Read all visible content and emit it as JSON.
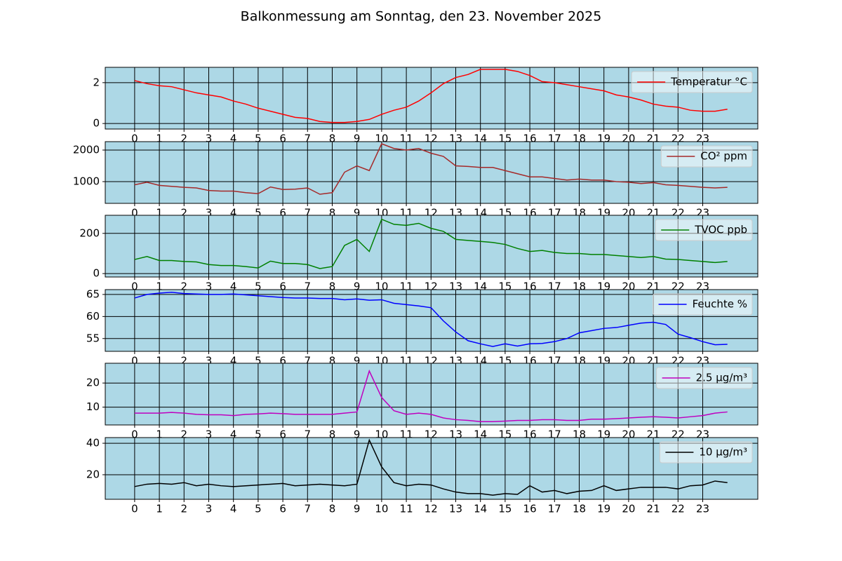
{
  "title": "Balkonmessung am Sonntag, den 23. November 2025",
  "chart_data": [
    {
      "type": "line",
      "x": [
        0,
        0.5,
        1,
        1.5,
        2,
        2.5,
        3,
        3.5,
        4,
        4.5,
        5,
        5.5,
        6,
        6.5,
        7,
        7.5,
        8,
        8.5,
        9,
        9.5,
        10,
        10.5,
        11,
        11.5,
        12,
        12.5,
        13,
        13.5,
        14,
        14.5,
        15,
        15.5,
        16,
        16.5,
        17,
        17.5,
        18,
        18.5,
        19,
        19.5,
        20,
        20.5,
        21,
        21.5,
        22,
        22.5,
        23,
        23.5,
        24
      ],
      "series": [
        {
          "name": "Temperatur °C",
          "color": "#ff0000",
          "values": [
            2.1,
            1.95,
            1.85,
            1.8,
            1.65,
            1.5,
            1.4,
            1.3,
            1.1,
            0.95,
            0.75,
            0.6,
            0.45,
            0.3,
            0.25,
            0.1,
            0.05,
            0.05,
            0.1,
            0.2,
            0.45,
            0.65,
            0.8,
            1.1,
            1.5,
            1.95,
            2.25,
            2.4,
            2.65,
            2.65,
            2.65,
            2.55,
            2.35,
            2.05,
            2.0,
            1.9,
            1.8,
            1.7,
            1.6,
            1.4,
            1.3,
            1.15,
            0.95,
            0.85,
            0.8,
            0.65,
            0.6,
            0.6,
            0.7
          ]
        }
      ],
      "xlim": [
        -1.19,
        25.23
      ],
      "ylim": [
        -0.27,
        2.75
      ],
      "xticks": [
        0,
        1,
        2,
        3,
        4,
        5,
        6,
        7,
        8,
        9,
        10,
        11,
        12,
        13,
        14,
        15,
        16,
        17,
        18,
        19,
        20,
        21,
        22,
        23
      ],
      "yticks": [
        0,
        2
      ],
      "grid": true,
      "legend": "upper right"
    },
    {
      "type": "line",
      "x": [
        0,
        0.5,
        1,
        1.5,
        2,
        2.5,
        3,
        3.5,
        4,
        4.5,
        5,
        5.5,
        6,
        6.5,
        7,
        7.5,
        8,
        8.5,
        9,
        9.5,
        10,
        10.5,
        11,
        11.5,
        12,
        12.5,
        13,
        13.5,
        14,
        14.5,
        15,
        15.5,
        16,
        16.5,
        17,
        17.5,
        18,
        18.5,
        19,
        19.5,
        20,
        20.5,
        21,
        21.5,
        22,
        22.5,
        23,
        23.5,
        24
      ],
      "series": [
        {
          "name": "CO² ppm",
          "color": "#a52a2a",
          "values": [
            900,
            980,
            880,
            850,
            820,
            800,
            720,
            700,
            700,
            650,
            620,
            830,
            750,
            760,
            800,
            600,
            650,
            1300,
            1500,
            1350,
            2200,
            2050,
            2000,
            2050,
            1900,
            1800,
            1500,
            1480,
            1450,
            1450,
            1350,
            1250,
            1150,
            1150,
            1100,
            1050,
            1080,
            1050,
            1050,
            1000,
            980,
            940,
            970,
            900,
            880,
            850,
            820,
            800,
            820
          ]
        }
      ],
      "xlim": [
        -1.19,
        25.23
      ],
      "ylim": [
        311,
        2267
      ],
      "xticks": [
        0,
        1,
        2,
        3,
        4,
        5,
        6,
        7,
        8,
        9,
        10,
        11,
        12,
        13,
        14,
        15,
        16,
        17,
        18,
        19,
        20,
        21,
        22,
        23
      ],
      "yticks": [
        1000,
        2000
      ],
      "grid": true,
      "legend": "upper right"
    },
    {
      "type": "line",
      "x": [
        0,
        0.5,
        1,
        1.5,
        2,
        2.5,
        3,
        3.5,
        4,
        4.5,
        5,
        5.5,
        6,
        6.5,
        7,
        7.5,
        8,
        8.5,
        9,
        9.5,
        10,
        10.5,
        11,
        11.5,
        12,
        12.5,
        13,
        13.5,
        14,
        14.5,
        15,
        15.5,
        16,
        16.5,
        17,
        17.5,
        18,
        18.5,
        19,
        19.5,
        20,
        20.5,
        21,
        21.5,
        22,
        22.5,
        23,
        23.5,
        24
      ],
      "series": [
        {
          "name": "TVOC ppb",
          "color": "#008000",
          "values": [
            70,
            85,
            65,
            65,
            60,
            58,
            45,
            40,
            40,
            35,
            28,
            62,
            50,
            50,
            45,
            25,
            35,
            140,
            170,
            110,
            270,
            245,
            240,
            250,
            225,
            210,
            170,
            165,
            160,
            155,
            145,
            125,
            110,
            115,
            105,
            100,
            100,
            95,
            95,
            90,
            85,
            80,
            85,
            72,
            70,
            65,
            60,
            55,
            60
          ]
        }
      ],
      "xlim": [
        -1.19,
        25.23
      ],
      "ylim": [
        -17,
        290
      ],
      "xticks": [
        0,
        1,
        2,
        3,
        4,
        5,
        6,
        7,
        8,
        9,
        10,
        11,
        12,
        13,
        14,
        15,
        16,
        17,
        18,
        19,
        20,
        21,
        22,
        23
      ],
      "yticks": [
        0,
        200
      ],
      "grid": true,
      "legend": "upper right"
    },
    {
      "type": "line",
      "x": [
        0,
        0.5,
        1,
        1.5,
        2,
        2.5,
        3,
        3.5,
        4,
        4.5,
        5,
        5.5,
        6,
        6.5,
        7,
        7.5,
        8,
        8.5,
        9,
        9.5,
        10,
        10.5,
        11,
        11.5,
        12,
        12.5,
        13,
        13.5,
        14,
        14.5,
        15,
        15.5,
        16,
        16.5,
        17,
        17.5,
        18,
        18.5,
        19,
        19.5,
        20,
        20.5,
        21,
        21.5,
        22,
        22.5,
        23,
        23.5,
        24
      ],
      "series": [
        {
          "name": "Feuchte %",
          "color": "#0000ff",
          "values": [
            64.2,
            65,
            65.3,
            65.5,
            65.2,
            65.1,
            65,
            65,
            65.1,
            64.9,
            64.7,
            64.5,
            64.3,
            64.2,
            64.2,
            64.1,
            64.1,
            63.8,
            64,
            63.7,
            63.8,
            63,
            62.7,
            62.4,
            62,
            59,
            56.5,
            54.5,
            53.8,
            53.2,
            53.8,
            53.3,
            53.8,
            53.9,
            54.3,
            55,
            56.3,
            56.8,
            57.3,
            57.5,
            58,
            58.5,
            58.7,
            58.2,
            56,
            55.2,
            54.3,
            53.6,
            53.7
          ]
        }
      ],
      "xlim": [
        -1.19,
        25.23
      ],
      "ylim": [
        52.1,
        66.1
      ],
      "xticks": [
        0,
        1,
        2,
        3,
        4,
        5,
        6,
        7,
        8,
        9,
        10,
        11,
        12,
        13,
        14,
        15,
        16,
        17,
        18,
        19,
        20,
        21,
        22,
        23
      ],
      "yticks": [
        55,
        60,
        65
      ],
      "grid": true,
      "legend": "upper right"
    },
    {
      "type": "line",
      "x": [
        0,
        0.5,
        1,
        1.5,
        2,
        2.5,
        3,
        3.5,
        4,
        4.5,
        5,
        5.5,
        6,
        6.5,
        7,
        7.5,
        8,
        8.5,
        9,
        9.5,
        10,
        10.5,
        11,
        11.5,
        12,
        12.5,
        13,
        13.5,
        14,
        14.5,
        15,
        15.5,
        16,
        16.5,
        17,
        17.5,
        18,
        18.5,
        19,
        19.5,
        20,
        20.5,
        21,
        21.5,
        22,
        22.5,
        23,
        23.5,
        24
      ],
      "series": [
        {
          "name": "2.5 µg/m³",
          "color": "#bf00bf",
          "values": [
            7.5,
            7.5,
            7.5,
            7.8,
            7.5,
            7,
            6.8,
            6.8,
            6.5,
            7,
            7.2,
            7.5,
            7.3,
            7,
            7,
            7,
            7,
            7.5,
            8,
            25,
            14,
            8.5,
            7,
            7.5,
            7,
            5.5,
            4.8,
            4.5,
            4,
            4,
            4.2,
            4.5,
            4.5,
            4.8,
            4.8,
            4.5,
            4.5,
            5,
            5,
            5.2,
            5.5,
            5.8,
            6,
            5.8,
            5.5,
            6,
            6.5,
            7.5,
            8
          ]
        }
      ],
      "xlim": [
        -1.19,
        25.23
      ],
      "ylim": [
        2.6,
        28.2
      ],
      "xticks": [
        0,
        1,
        2,
        3,
        4,
        5,
        6,
        7,
        8,
        9,
        10,
        11,
        12,
        13,
        14,
        15,
        16,
        17,
        18,
        19,
        20,
        21,
        22,
        23
      ],
      "yticks": [
        10,
        20
      ],
      "grid": true,
      "legend": "upper right"
    },
    {
      "type": "line",
      "x": [
        0,
        0.5,
        1,
        1.5,
        2,
        2.5,
        3,
        3.5,
        4,
        4.5,
        5,
        5.5,
        6,
        6.5,
        7,
        7.5,
        8,
        8.5,
        9,
        9.5,
        10,
        10.5,
        11,
        11.5,
        12,
        12.5,
        13,
        13.5,
        14,
        14.5,
        15,
        15.5,
        16,
        16.5,
        17,
        17.5,
        18,
        18.5,
        19,
        19.5,
        20,
        20.5,
        21,
        21.5,
        22,
        22.5,
        23,
        23.5,
        24
      ],
      "series": [
        {
          "name": "10 µg/m³",
          "color": "#000000",
          "values": [
            12.5,
            14,
            14.5,
            14,
            15,
            13,
            14,
            13,
            12.5,
            13,
            13.5,
            14,
            14.5,
            13,
            13.5,
            14,
            13.5,
            13,
            14,
            42,
            25,
            15,
            13,
            14,
            13.5,
            11,
            9,
            8,
            8,
            7,
            8,
            7.5,
            13,
            9,
            10,
            8,
            9.5,
            10,
            13,
            10,
            11,
            12,
            12,
            12,
            11,
            13,
            13.5,
            16,
            15
          ]
        }
      ],
      "xlim": [
        -1.19,
        25.23
      ],
      "ylim": [
        4.4,
        43.6
      ],
      "xticks": [
        0,
        1,
        2,
        3,
        4,
        5,
        6,
        7,
        8,
        9,
        10,
        11,
        12,
        13,
        14,
        15,
        16,
        17,
        18,
        19,
        20,
        21,
        22,
        23
      ],
      "yticks": [
        20,
        40
      ],
      "grid": true,
      "legend": "upper right"
    }
  ]
}
